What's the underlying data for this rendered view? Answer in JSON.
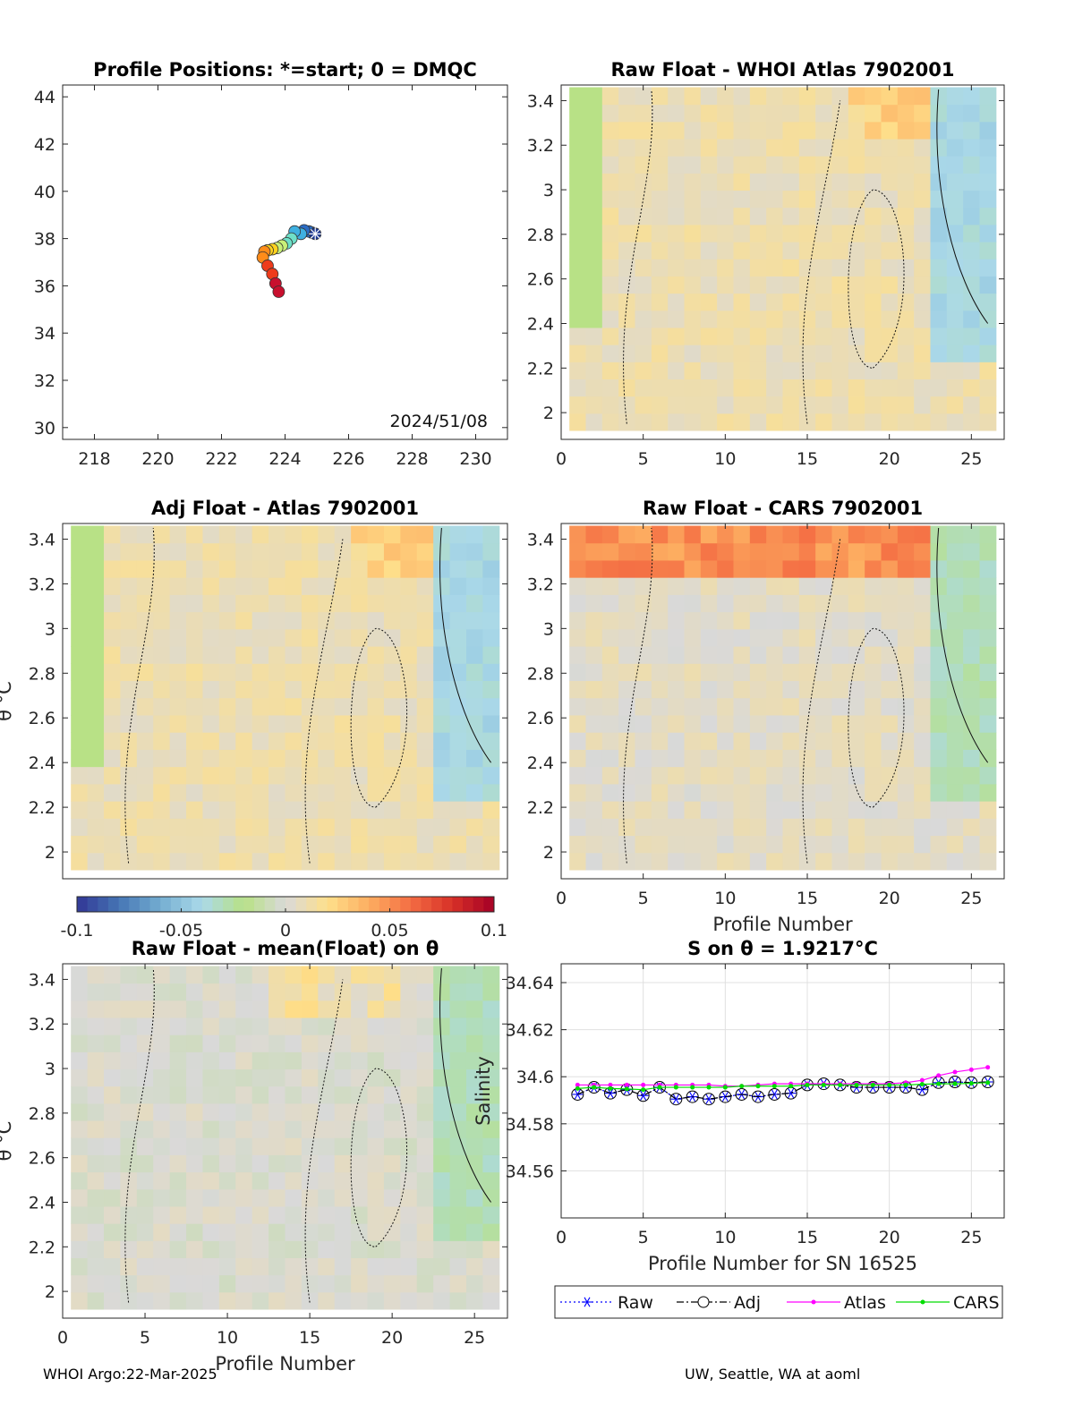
{
  "footer": {
    "left": "WHOI Argo:22-Mar-2025",
    "right": "UW, Seattle, WA at aoml"
  },
  "colorbar": {
    "ticks": [
      "-0.1",
      "-0.05",
      "0",
      "0.05",
      "0.1"
    ],
    "range": [
      -0.1,
      0.1
    ],
    "colormap": [
      "#313695",
      "#4575b4",
      "#74add1",
      "#abd9e9",
      "#b8e186",
      "#d9d9d9",
      "#fee08b",
      "#fdae61",
      "#f46d43",
      "#d73027",
      "#a50026"
    ]
  },
  "chart_data": [
    {
      "id": "positions",
      "type": "scatter",
      "title": "Profile Positions: *=start; 0 = DMQC",
      "xlabel": "",
      "ylabel": "",
      "xlim": [
        217,
        231
      ],
      "ylim": [
        29.5,
        44.5
      ],
      "xticks": [
        218,
        220,
        222,
        224,
        226,
        228,
        230
      ],
      "yticks": [
        30,
        32,
        34,
        36,
        38,
        40,
        42,
        44
      ],
      "annotation": "2024/51/08",
      "start_marker": {
        "x": 224.95,
        "y": 38.2
      },
      "points": [
        {
          "x": 224.85,
          "y": 38.25
        },
        {
          "x": 224.75,
          "y": 38.3
        },
        {
          "x": 224.6,
          "y": 38.35
        },
        {
          "x": 224.5,
          "y": 38.2
        },
        {
          "x": 224.3,
          "y": 38.3
        },
        {
          "x": 224.2,
          "y": 38.0
        },
        {
          "x": 224.05,
          "y": 37.8
        },
        {
          "x": 223.9,
          "y": 37.7
        },
        {
          "x": 223.75,
          "y": 37.6
        },
        {
          "x": 223.6,
          "y": 37.55
        },
        {
          "x": 223.45,
          "y": 37.5
        },
        {
          "x": 223.35,
          "y": 37.45
        },
        {
          "x": 223.3,
          "y": 37.2
        },
        {
          "x": 223.45,
          "y": 36.85
        },
        {
          "x": 223.6,
          "y": 36.5
        },
        {
          "x": 223.7,
          "y": 36.1
        },
        {
          "x": 223.8,
          "y": 35.75
        }
      ],
      "grid": false
    },
    {
      "id": "raw-whoi",
      "type": "heatmap",
      "title": "Raw Float - WHOI Atlas  7902001",
      "xlabel": "",
      "ylabel": "",
      "xlim": [
        0,
        27
      ],
      "ylim": [
        1.88,
        3.47
      ],
      "xticks": [
        0,
        5,
        10,
        15,
        20,
        25
      ],
      "yticks": [
        "2",
        "2.2",
        "2.4",
        "2.6",
        "2.8",
        "3",
        "3.2",
        "3.4"
      ],
      "field": {
        "base": 0.01,
        "warm_top": [
          18,
          22,
          0.02
        ],
        "cool_right": [
          23,
          26,
          -0.04
        ],
        "cool_left": [
          1,
          2,
          -0.02
        ]
      }
    },
    {
      "id": "adj-atlas",
      "type": "heatmap",
      "title": "Adj Float - Atlas  7902001",
      "xlabel": "",
      "ylabel": "θ °C",
      "xlim": [
        0,
        27
      ],
      "ylim": [
        1.88,
        3.47
      ],
      "xticks": [],
      "yticks": [
        "2",
        "2.2",
        "2.4",
        "2.6",
        "2.8",
        "3",
        "3.2",
        "3.4"
      ],
      "field": {
        "base": 0.01,
        "warm_top": [
          18,
          22,
          0.02
        ],
        "cool_right": [
          23,
          26,
          -0.04
        ],
        "cool_left": [
          1,
          2,
          -0.02
        ]
      }
    },
    {
      "id": "raw-cars",
      "type": "heatmap",
      "title": "Raw Float - CARS  7902001",
      "xlabel": "Profile Number",
      "ylabel": "",
      "xlim": [
        0,
        27
      ],
      "ylim": [
        1.88,
        3.47
      ],
      "xticks": [
        0,
        5,
        10,
        15,
        20,
        25
      ],
      "yticks": [
        "2",
        "2.2",
        "2.4",
        "2.6",
        "2.8",
        "3",
        "3.2",
        "3.4"
      ],
      "field": {
        "base": 0.005,
        "warm_top": [
          1,
          22,
          0.045
        ],
        "cool_right": [
          23,
          26,
          -0.03
        ],
        "cool_left": [
          0,
          0,
          0
        ]
      }
    },
    {
      "id": "raw-mean",
      "type": "heatmap",
      "title": "Raw Float - mean(Float) on θ",
      "xlabel": "Profile Number",
      "ylabel": "θ °C",
      "xlim": [
        0,
        27
      ],
      "ylim": [
        1.88,
        3.47
      ],
      "xticks": [
        0,
        5,
        10,
        15,
        20,
        25
      ],
      "yticks": [
        "2",
        "2.2",
        "2.4",
        "2.6",
        "2.8",
        "3",
        "3.2",
        "3.4"
      ],
      "field": {
        "base": 0.0,
        "warm_top": [
          13,
          20,
          0.008
        ],
        "cool_right": [
          23,
          26,
          -0.03
        ],
        "cool_left": [
          0,
          0,
          0
        ]
      }
    },
    {
      "id": "salinity",
      "type": "line",
      "title": "S on θ = 1.9217°C",
      "xlabel": "Profile Number for SN 16525",
      "ylabel": "Salinity",
      "xlim": [
        0,
        27
      ],
      "ylim": [
        34.54,
        34.648
      ],
      "xticks": [
        0,
        5,
        10,
        15,
        20,
        25
      ],
      "yticks": [
        "34.56",
        "34.58",
        "34.6",
        "34.62",
        "34.64"
      ],
      "grid": true,
      "x": [
        1,
        2,
        3,
        4,
        5,
        6,
        7,
        8,
        9,
        10,
        11,
        12,
        13,
        14,
        15,
        16,
        17,
        18,
        19,
        20,
        21,
        22,
        23,
        24,
        25,
        26
      ],
      "series": [
        {
          "name": "Raw",
          "color": "#0000ff",
          "marker": "asterisk",
          "style": "dotted",
          "values": [
            34.5925,
            34.5955,
            34.593,
            34.5945,
            34.592,
            34.5955,
            34.5905,
            34.5915,
            34.5905,
            34.5915,
            34.5925,
            34.5915,
            34.5925,
            34.593,
            34.5965,
            34.597,
            34.5965,
            34.5955,
            34.5955,
            34.5955,
            34.5955,
            34.5945,
            34.5975,
            34.5978,
            34.5975,
            34.5978
          ]
        },
        {
          "name": "Adj",
          "color": "#000000",
          "marker": "circle",
          "style": "dashdot",
          "values": [
            34.5925,
            34.5955,
            34.593,
            34.5945,
            34.592,
            34.5955,
            34.5905,
            34.5915,
            34.5905,
            34.5915,
            34.5925,
            34.5915,
            34.5925,
            34.593,
            34.5965,
            34.597,
            34.5965,
            34.5955,
            34.5955,
            34.5955,
            34.5955,
            34.5945,
            34.5975,
            34.5978,
            34.5975,
            34.5978
          ]
        },
        {
          "name": "Atlas",
          "color": "#ff00ff",
          "marker": "dot",
          "style": "solid",
          "values": [
            34.5965,
            34.5965,
            34.5965,
            34.5965,
            34.5965,
            34.5965,
            34.5965,
            34.5965,
            34.5965,
            34.596,
            34.596,
            34.5965,
            34.597,
            34.597,
            34.597,
            34.597,
            34.597,
            34.597,
            34.597,
            34.597,
            34.5975,
            34.5985,
            34.6005,
            34.602,
            34.603,
            34.604
          ]
        },
        {
          "name": "CARS",
          "color": "#00dd00",
          "marker": "dot",
          "style": "solid",
          "values": [
            34.595,
            34.5955,
            34.595,
            34.5948,
            34.5945,
            34.5955,
            34.5955,
            34.5955,
            34.5955,
            34.5955,
            34.596,
            34.596,
            34.596,
            34.596,
            34.5965,
            34.5965,
            34.5965,
            34.5965,
            34.5965,
            34.5965,
            34.5965,
            34.5968,
            34.597,
            34.597,
            34.5972,
            34.5975
          ]
        }
      ]
    }
  ]
}
